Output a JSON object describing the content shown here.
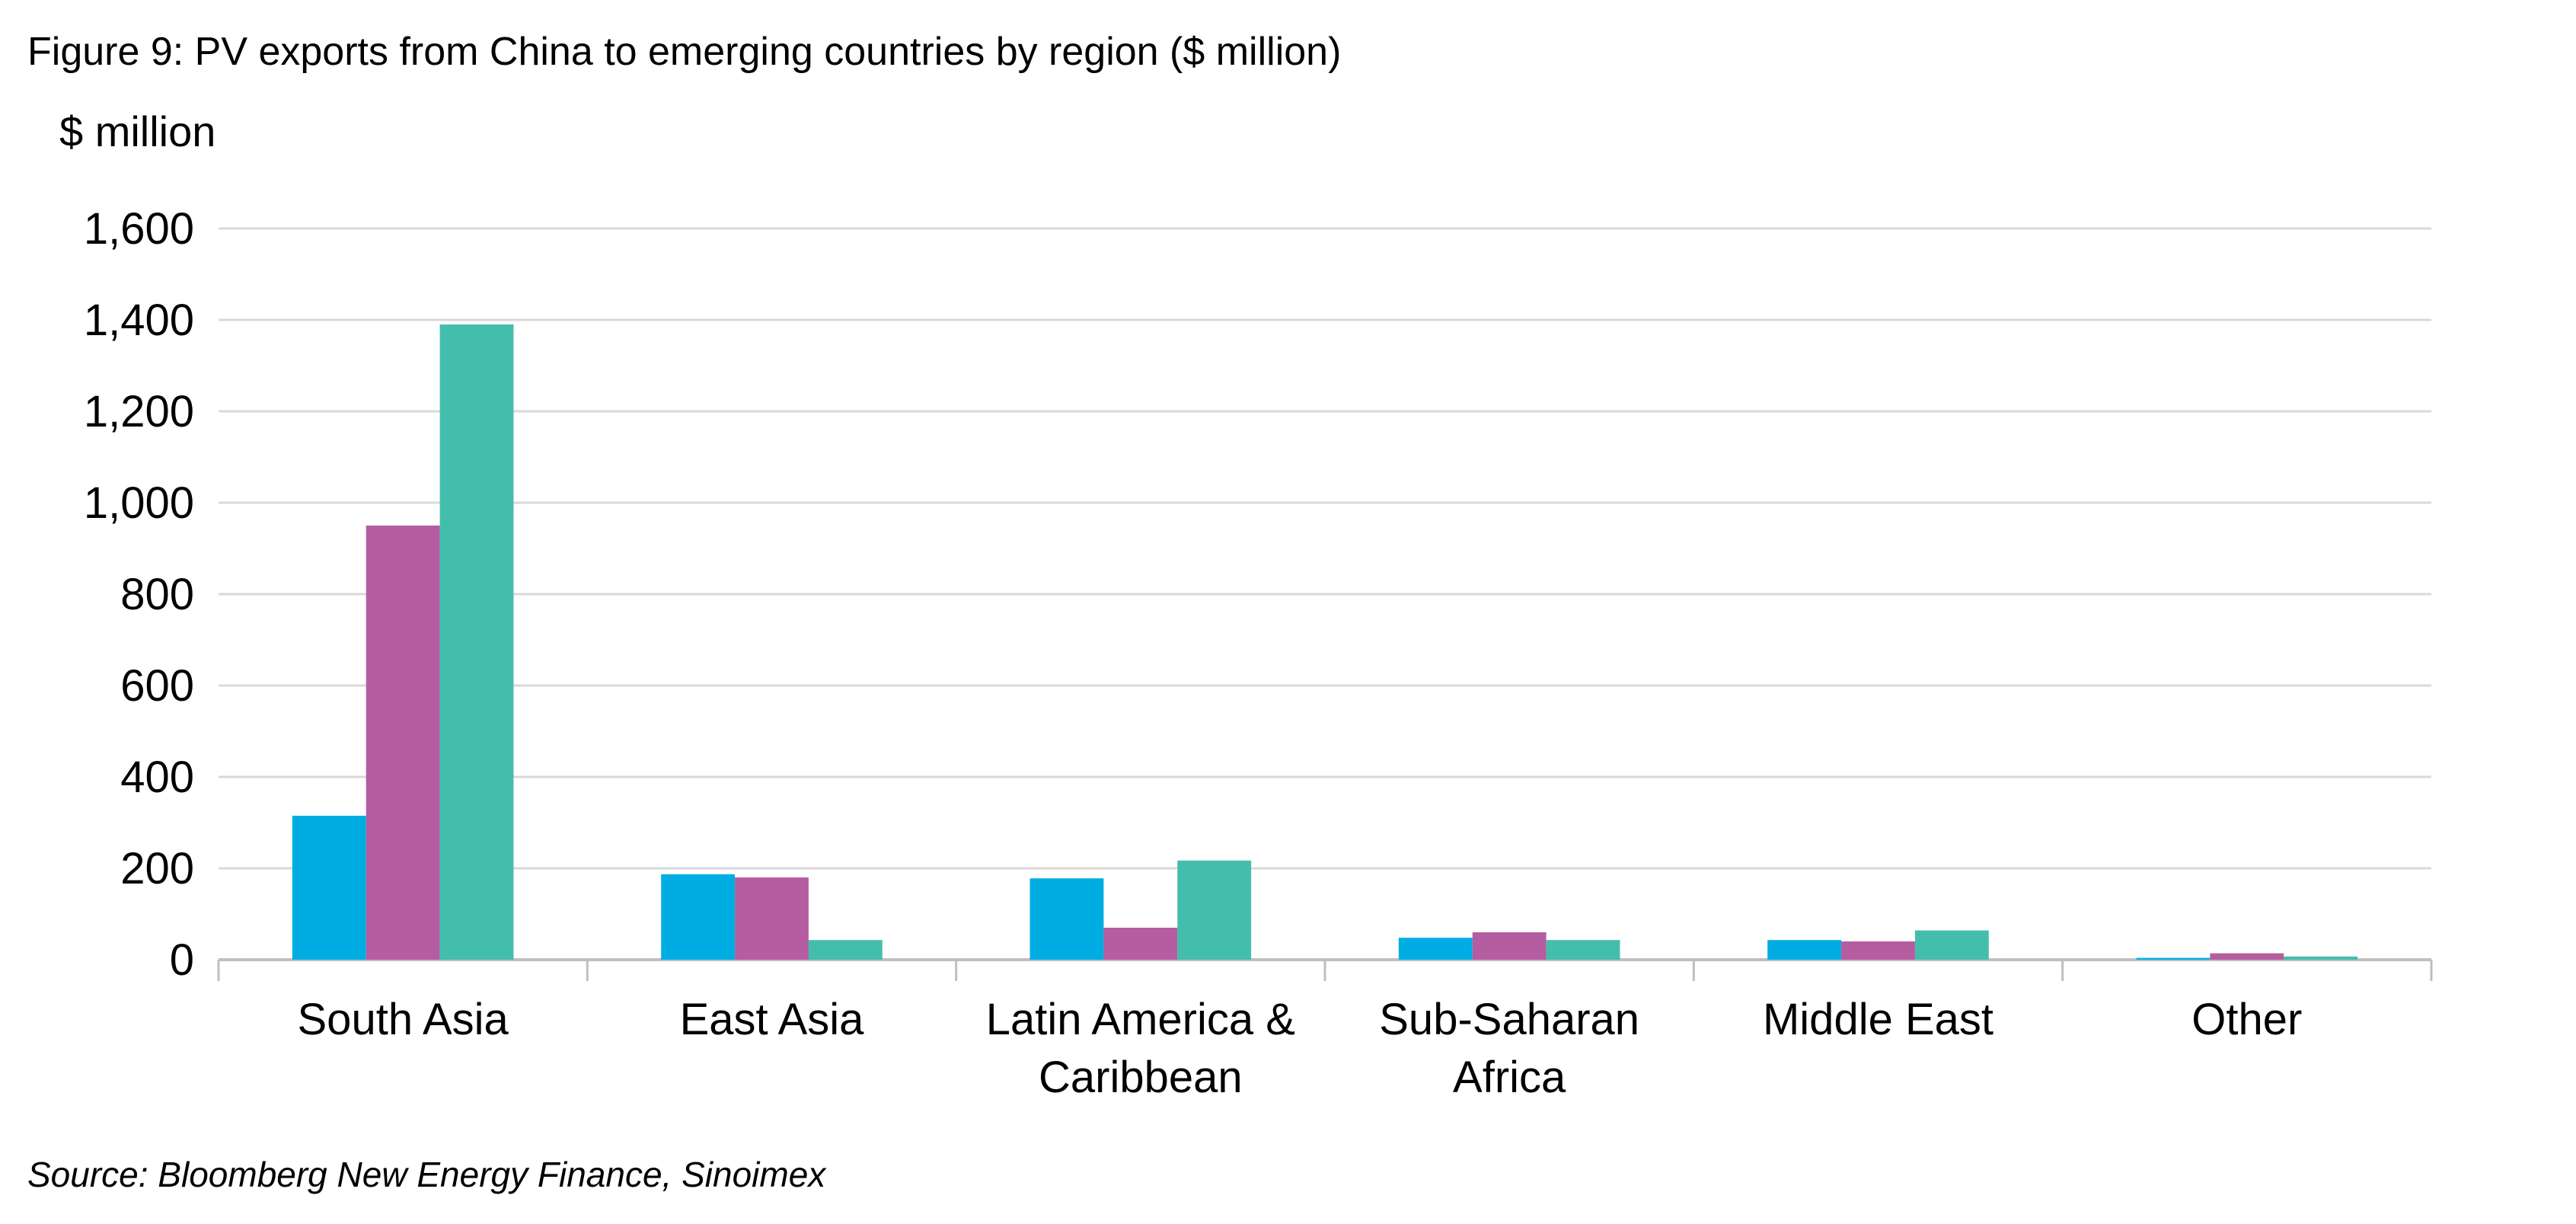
{
  "title": "Figure 9: PV exports from China to emerging countries by region ($ million)",
  "source": "Source: Bloomberg New Energy Finance, Sinoimex",
  "chart_data": {
    "type": "bar",
    "title": "Figure 9: PV exports from China to emerging countries by region ($ million)",
    "ylabel": "$ million",
    "xlabel": "",
    "ylim": [
      0,
      1600
    ],
    "yticks": [
      0,
      200,
      400,
      600,
      800,
      1000,
      1200,
      1400,
      1600
    ],
    "ytick_labels": [
      "0",
      "200",
      "400",
      "600",
      "800",
      "1,000",
      "1,200",
      "1,400",
      "1,600"
    ],
    "grid": true,
    "legend": "none",
    "categories": [
      [
        "South Asia"
      ],
      [
        "East Asia"
      ],
      [
        "Latin America &",
        "Caribbean"
      ],
      [
        "Sub-Saharan",
        "Africa"
      ],
      [
        "Middle East"
      ],
      [
        "Other"
      ]
    ],
    "series": [
      {
        "color": "#00ADE3",
        "values": [
          315,
          187,
          178,
          48,
          43,
          4
        ]
      },
      {
        "color": "#B55DA0",
        "values": [
          950,
          180,
          70,
          60,
          40,
          14
        ]
      },
      {
        "color": "#44BEAC",
        "values": [
          1390,
          43,
          217,
          43,
          64,
          7
        ]
      }
    ]
  }
}
